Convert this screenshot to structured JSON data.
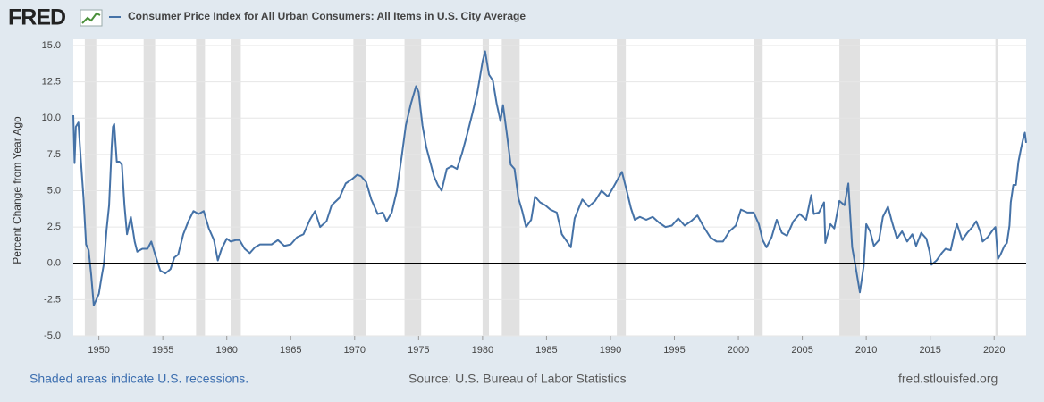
{
  "brand": "FRED",
  "footer": {
    "note": "Shaded areas indicate U.S. recessions.",
    "source": "Source: U.S. Bureau of Labor Statistics",
    "site": "fred.stlouisfed.org"
  },
  "chart_data": {
    "type": "line",
    "ylabel": "Percent Change from Year Ago",
    "x": [
      1948.0,
      1948.1,
      1948.2,
      1948.4,
      1948.6,
      1948.8,
      1949.0,
      1949.2,
      1949.4,
      1949.6,
      1949.8,
      1950.0,
      1950.2,
      1950.4,
      1950.6,
      1950.8,
      1951.0,
      1951.1,
      1951.2,
      1951.4,
      1951.6,
      1951.8,
      1952.0,
      1952.2,
      1952.5,
      1952.8,
      1953.0,
      1953.4,
      1953.8,
      1954.1,
      1954.4,
      1954.8,
      1955.2,
      1955.6,
      1955.9,
      1956.2,
      1956.6,
      1957.0,
      1957.4,
      1957.8,
      1958.2,
      1958.6,
      1959.0,
      1959.3,
      1959.6,
      1960.0,
      1960.3,
      1960.7,
      1961.0,
      1961.4,
      1961.8,
      1962.2,
      1962.6,
      1963.0,
      1963.5,
      1964.0,
      1964.5,
      1965.0,
      1965.5,
      1966.0,
      1966.5,
      1966.9,
      1967.3,
      1967.8,
      1968.2,
      1968.8,
      1969.3,
      1969.8,
      1970.2,
      1970.5,
      1970.9,
      1971.3,
      1971.8,
      1972.2,
      1972.5,
      1972.9,
      1973.3,
      1973.7,
      1974.0,
      1974.4,
      1974.8,
      1975.0,
      1975.3,
      1975.6,
      1975.9,
      1976.2,
      1976.5,
      1976.8,
      1977.2,
      1977.6,
      1978.0,
      1978.4,
      1978.8,
      1979.2,
      1979.6,
      1980.0,
      1980.2,
      1980.5,
      1980.8,
      1981.1,
      1981.4,
      1981.6,
      1981.9,
      1982.2,
      1982.5,
      1982.8,
      1983.1,
      1983.4,
      1983.8,
      1984.1,
      1984.5,
      1984.9,
      1985.3,
      1985.8,
      1986.2,
      1986.6,
      1986.9,
      1987.2,
      1987.8,
      1988.3,
      1988.8,
      1989.3,
      1989.8,
      1990.2,
      1990.7,
      1990.9,
      1991.3,
      1991.6,
      1991.9,
      1992.3,
      1992.8,
      1993.3,
      1993.8,
      1994.3,
      1994.8,
      1995.3,
      1995.8,
      1996.3,
      1996.8,
      1997.3,
      1997.8,
      1998.3,
      1998.8,
      1999.3,
      1999.8,
      2000.2,
      2000.7,
      2001.2,
      2001.6,
      2001.9,
      2002.2,
      2002.6,
      2003.0,
      2003.4,
      2003.8,
      2004.3,
      2004.8,
      2005.3,
      2005.7,
      2005.9,
      2006.3,
      2006.7,
      2006.8,
      2007.2,
      2007.5,
      2007.9,
      2008.3,
      2008.6,
      2008.9,
      2009.2,
      2009.5,
      2009.8,
      2010.0,
      2010.3,
      2010.6,
      2011.0,
      2011.3,
      2011.7,
      2012.0,
      2012.4,
      2012.8,
      2013.2,
      2013.6,
      2013.9,
      2014.3,
      2014.7,
      2014.95,
      2015.1,
      2015.5,
      2015.9,
      2016.2,
      2016.6,
      2016.9,
      2017.1,
      2017.5,
      2017.9,
      2018.3,
      2018.6,
      2018.9,
      2019.1,
      2019.5,
      2019.9,
      2020.1,
      2020.3,
      2020.5,
      2020.8,
      2021.0,
      2021.2,
      2021.3,
      2021.5,
      2021.7,
      2021.9,
      2022.1,
      2022.25,
      2022.4,
      2022.5
    ],
    "series": [
      {
        "name": "Consumer Price Index for All Urban Consumers: All Items in U.S. City Average",
        "color": "#4572a7",
        "values": [
          10.2,
          6.9,
          9.4,
          9.7,
          7.0,
          4.5,
          1.3,
          0.9,
          -0.8,
          -2.9,
          -2.5,
          -2.1,
          -1.0,
          0.0,
          2.3,
          4.0,
          8.0,
          9.4,
          9.6,
          7.0,
          7.0,
          6.8,
          4.0,
          2.0,
          3.2,
          1.5,
          0.8,
          1.0,
          1.0,
          1.5,
          0.6,
          -0.5,
          -0.7,
          -0.4,
          0.4,
          0.6,
          2.0,
          2.9,
          3.6,
          3.4,
          3.6,
          2.4,
          1.6,
          0.2,
          1.0,
          1.7,
          1.5,
          1.6,
          1.6,
          1.0,
          0.7,
          1.1,
          1.3,
          1.3,
          1.3,
          1.6,
          1.2,
          1.3,
          1.8,
          2.0,
          3.0,
          3.6,
          2.5,
          2.9,
          4.0,
          4.5,
          5.5,
          5.8,
          6.1,
          6.0,
          5.6,
          4.4,
          3.4,
          3.5,
          2.9,
          3.5,
          5.0,
          7.5,
          9.5,
          11.0,
          12.2,
          11.8,
          9.5,
          8.0,
          7.0,
          6.0,
          5.4,
          5.0,
          6.5,
          6.7,
          6.5,
          7.6,
          8.9,
          10.3,
          11.8,
          13.9,
          14.6,
          13.0,
          12.6,
          11.0,
          9.8,
          10.9,
          8.9,
          6.8,
          6.5,
          4.5,
          3.6,
          2.5,
          3.0,
          4.6,
          4.2,
          4.0,
          3.7,
          3.5,
          2.0,
          1.5,
          1.1,
          3.1,
          4.4,
          3.9,
          4.3,
          5.0,
          4.6,
          5.2,
          6.0,
          6.3,
          4.9,
          3.8,
          3.0,
          3.2,
          3.0,
          3.2,
          2.8,
          2.5,
          2.6,
          3.1,
          2.6,
          2.9,
          3.3,
          2.5,
          1.8,
          1.5,
          1.5,
          2.2,
          2.6,
          3.7,
          3.5,
          3.5,
          2.7,
          1.6,
          1.1,
          1.8,
          3.0,
          2.1,
          1.9,
          2.9,
          3.4,
          3.0,
          4.7,
          3.4,
          3.5,
          4.2,
          1.4,
          2.7,
          2.4,
          4.3,
          4.0,
          5.5,
          1.1,
          -0.4,
          -2.0,
          -0.2,
          2.7,
          2.2,
          1.2,
          1.6,
          3.2,
          3.9,
          2.9,
          1.7,
          2.2,
          1.5,
          2.0,
          1.2,
          2.1,
          1.7,
          0.8,
          -0.1,
          0.2,
          0.7,
          1.0,
          0.9,
          2.1,
          2.7,
          1.6,
          2.1,
          2.5,
          2.9,
          2.2,
          1.5,
          1.8,
          2.3,
          2.5,
          0.3,
          0.6,
          1.2,
          1.4,
          2.6,
          4.2,
          5.4,
          5.4,
          7.0,
          7.9,
          8.5,
          9.0,
          8.3
        ]
      }
    ],
    "recessions": [
      [
        1948.9,
        1949.8
      ],
      [
        1953.5,
        1954.4
      ],
      [
        1957.6,
        1958.3
      ],
      [
        1960.3,
        1961.1
      ],
      [
        1969.9,
        1970.9
      ],
      [
        1973.9,
        1975.2
      ],
      [
        1980.0,
        1980.5
      ],
      [
        1981.5,
        1982.9
      ],
      [
        1990.5,
        1991.2
      ],
      [
        2001.2,
        2001.9
      ],
      [
        2007.9,
        2009.5
      ],
      [
        2020.1,
        2020.3
      ]
    ],
    "recession_color": "#e1e1e1",
    "xlim": [
      1948.0,
      2022.5
    ],
    "xticks": [
      1950,
      1955,
      1960,
      1965,
      1970,
      1975,
      1980,
      1985,
      1990,
      1995,
      2000,
      2005,
      2010,
      2015,
      2020
    ],
    "ylim": [
      -5,
      15
    ],
    "yticks": [
      {
        "value": -5,
        "label": "-5.0"
      },
      {
        "value": -2.5,
        "label": "-2.5"
      },
      {
        "value": 0,
        "label": "0.0"
      },
      {
        "value": 2.5,
        "label": "2.5"
      },
      {
        "value": 5,
        "label": "5.0"
      },
      {
        "value": 7.5,
        "label": "7.5"
      },
      {
        "value": 10,
        "label": "10.0"
      },
      {
        "value": 12.5,
        "label": "12.5"
      },
      {
        "value": 15,
        "label": "15.0"
      }
    ],
    "grid": true,
    "zero_line": true
  }
}
